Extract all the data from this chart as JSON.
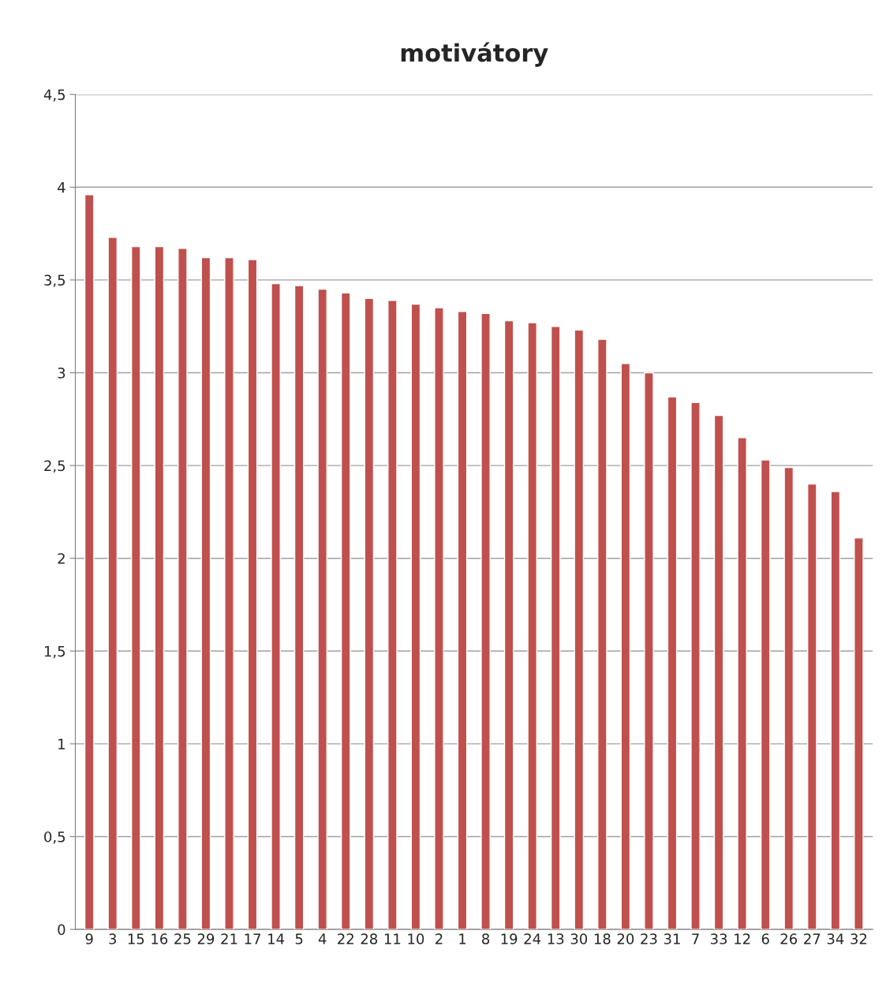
{
  "chart_data": {
    "type": "bar",
    "title": "motivátory",
    "categories": [
      "9",
      "3",
      "15",
      "16",
      "25",
      "29",
      "21",
      "17",
      "14",
      "5",
      "4",
      "22",
      "28",
      "11",
      "10",
      "2",
      "1",
      "8",
      "19",
      "24",
      "13",
      "30",
      "18",
      "20",
      "23",
      "31",
      "7",
      "33",
      "12",
      "6",
      "26",
      "27",
      "34",
      "32"
    ],
    "values": [
      3.96,
      3.73,
      3.68,
      3.68,
      3.67,
      3.62,
      3.62,
      3.61,
      3.48,
      3.47,
      3.45,
      3.43,
      3.4,
      3.39,
      3.37,
      3.35,
      3.33,
      3.32,
      3.28,
      3.27,
      3.25,
      3.23,
      3.18,
      3.05,
      3.0,
      2.87,
      2.84,
      2.77,
      2.65,
      2.53,
      2.49,
      2.4,
      2.36,
      2.11
    ],
    "color": "#c0504d",
    "ylim": [
      0,
      4.5
    ],
    "yticks": [
      0,
      {
        "value": 0.5,
        "label": "0,5"
      },
      1,
      {
        "value": 1.5,
        "label": "1,5"
      },
      2,
      {
        "value": 2.5,
        "label": "2,5"
      },
      3,
      {
        "value": 3.5,
        "label": "3,5"
      },
      4,
      {
        "value": 4.5,
        "label": "4,5"
      }
    ],
    "grid": "y",
    "legend": false
  }
}
